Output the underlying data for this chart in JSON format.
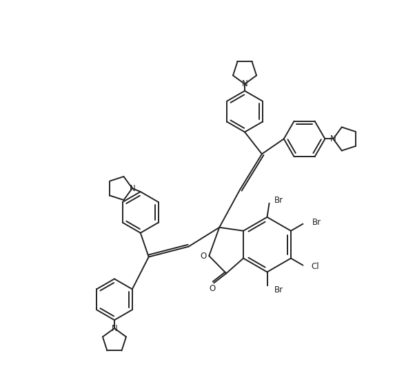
{
  "background_color": "#ffffff",
  "line_color": "#222222",
  "line_width": 1.4,
  "font_size": 8.5,
  "figsize": [
    5.73,
    5.67
  ],
  "dpi": 100,
  "xlim": [
    0,
    573
  ],
  "ylim": [
    0,
    567
  ]
}
